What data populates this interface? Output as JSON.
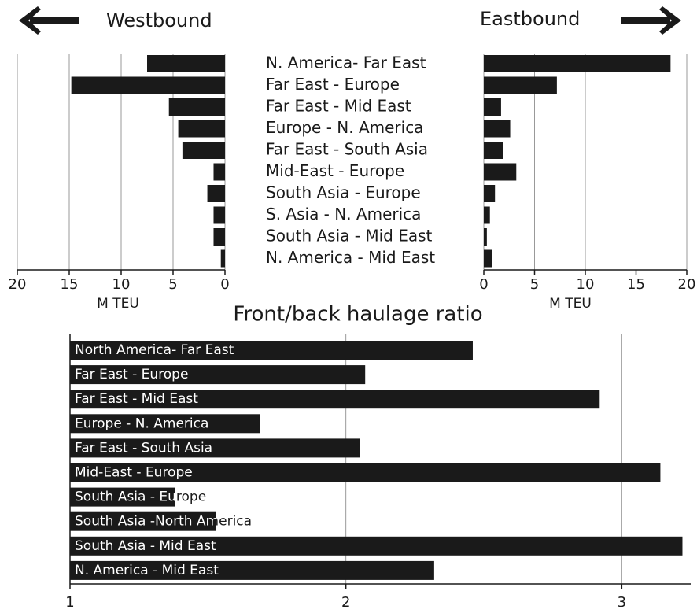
{
  "chart_data": [
    {
      "type": "hbar-reversed",
      "title": "Westbound",
      "xlabel": "M TEU",
      "categories": [
        "N. America- Far East",
        "Far East - Europe",
        "Far East - Mid East",
        "Europe -  N. America",
        "Far East - South Asia",
        "Mid-East - Europe",
        "South Asia - Europe",
        "S. Asia - N. America",
        "South Asia - Mid East",
        "N. America - Mid East"
      ],
      "values": [
        7.5,
        14.8,
        5.4,
        4.5,
        4.1,
        1.1,
        1.7,
        1.1,
        1.1,
        0.4
      ],
      "color": "#1a1a1a",
      "xlim": [
        0,
        20
      ],
      "xticks": [
        0,
        5,
        10,
        15,
        20
      ],
      "grid": true
    },
    {
      "type": "hbar",
      "title": "Eastbound",
      "xlabel": "M TEU",
      "values": [
        18.4,
        7.2,
        1.7,
        2.6,
        1.9,
        3.2,
        1.1,
        0.6,
        0.3,
        0.8
      ],
      "color": "#1a1a1a",
      "xlim": [
        0,
        20
      ],
      "xticks": [
        0,
        5,
        10,
        15,
        20
      ],
      "grid": true
    },
    {
      "type": "hbar-labeled",
      "title": "Front/back haulage ratio",
      "categories": [
        "North America- Far East",
        "Far East - Europe",
        "Far East - Mid East",
        "Europe -  N. America",
        "Far East - South Asia",
        "Mid-East - Europe",
        "South Asia  -  Europe",
        "South  Asia -North America",
        "South Asia - Mid East",
        "N. America - Mid East"
      ],
      "values": [
        2.46,
        2.07,
        2.92,
        1.69,
        2.05,
        3.14,
        1.38,
        1.53,
        3.22,
        2.32
      ],
      "color": "#1a1a1a",
      "xlim": [
        1,
        3.25
      ],
      "xticks": [
        1,
        2,
        3
      ],
      "grid": true
    }
  ]
}
